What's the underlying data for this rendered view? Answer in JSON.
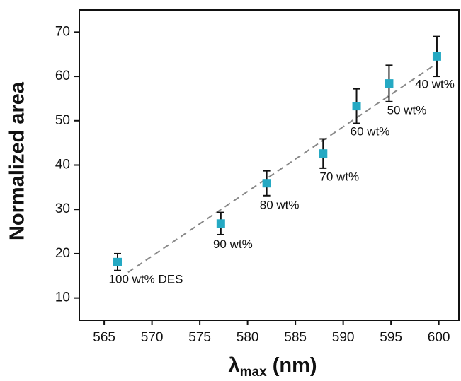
{
  "chart_data": {
    "type": "scatter",
    "ylabel": "Normalized area",
    "xlabel": "λ",
    "xlabel_sub": "max",
    "xlabel_unit": " (nm)",
    "x": [
      566.4,
      577.2,
      582.0,
      587.9,
      591.4,
      594.8,
      599.8
    ],
    "series": [
      {
        "color": "#25a9c3",
        "values": [
          18.1,
          26.8,
          35.9,
          42.6,
          53.3,
          58.4,
          64.5
        ],
        "errors": [
          1.9,
          2.5,
          2.8,
          3.3,
          3.9,
          4.1,
          4.5
        ]
      }
    ],
    "point_labels": [
      "100 wt% DES",
      "90 wt%",
      "80 wt%",
      "70 wt%",
      "60 wt%",
      "50 wt%",
      "40 wt%"
    ],
    "fit_line": {
      "x": [
        567.5,
        599.5
      ],
      "y": [
        15.8,
        62.5
      ],
      "color": "#888888"
    },
    "xlim": [
      562.4,
      602.1
    ],
    "ylim": [
      5,
      75
    ],
    "xticks": [
      565,
      570,
      575,
      580,
      585,
      590,
      595,
      600
    ],
    "yticks": [
      10,
      20,
      30,
      40,
      50,
      60,
      70
    ]
  }
}
